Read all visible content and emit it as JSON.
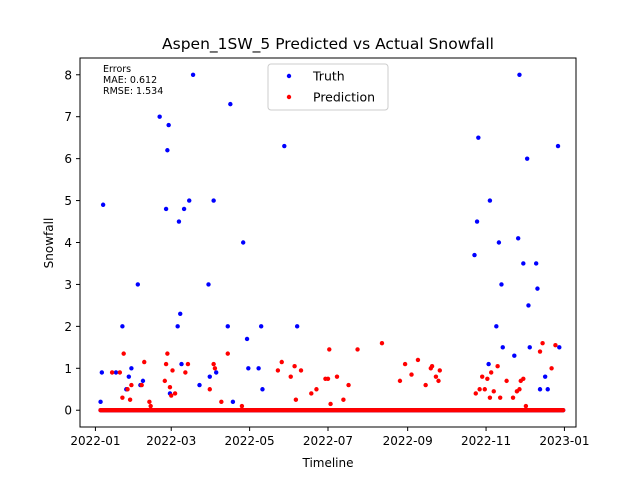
{
  "chart_data": {
    "type": "scatter",
    "title": "Aspen_1SW_5 Predicted vs Actual Snowfall",
    "xlabel": "Timeline",
    "ylabel": "Snowfall",
    "xlim": [
      "2021-12-20",
      "2023-01-10"
    ],
    "ylim": [
      -0.4,
      8.4
    ],
    "xticks": [
      "2022-01-01",
      "2022-03-01",
      "2022-05-01",
      "2022-07-01",
      "2022-09-01",
      "2022-11-01",
      "2023-01-01"
    ],
    "xtick_labels": [
      "2022-01",
      "2022-03",
      "2022-05",
      "2022-07",
      "2022-09",
      "2022-11",
      "2023-01"
    ],
    "yticks": [
      0,
      1,
      2,
      3,
      4,
      5,
      6,
      7,
      8
    ],
    "grid": false,
    "legend_position": "top-center",
    "errors": {
      "heading": "Errors",
      "mae": "MAE: 0.612",
      "rmse": "RMSE: 1.534"
    },
    "zero_runs": [
      {
        "start": "2022-01-05",
        "end": "2022-04-30"
      },
      {
        "start": "2022-05-01",
        "end": "2022-09-30"
      },
      {
        "start": "2022-10-01",
        "end": "2022-12-31"
      }
    ],
    "series": [
      {
        "name": "Truth",
        "color": "#0000ff",
        "points": [
          [
            "2022-01-05",
            0.2
          ],
          [
            "2022-01-06",
            0.9
          ],
          [
            "2022-01-07",
            4.9
          ],
          [
            "2022-01-17",
            0.9
          ],
          [
            "2022-01-22",
            2.0
          ],
          [
            "2022-01-25",
            0.5
          ],
          [
            "2022-01-27",
            0.8
          ],
          [
            "2022-01-29",
            1.0
          ],
          [
            "2022-02-03",
            3.0
          ],
          [
            "2022-02-05",
            0.6
          ],
          [
            "2022-02-07",
            0.7
          ],
          [
            "2022-02-20",
            7.0
          ],
          [
            "2022-02-25",
            4.8
          ],
          [
            "2022-02-26",
            6.2
          ],
          [
            "2022-02-27",
            6.8
          ],
          [
            "2022-02-28",
            0.4
          ],
          [
            "2022-03-06",
            2.0
          ],
          [
            "2022-03-07",
            4.5
          ],
          [
            "2022-03-08",
            2.3
          ],
          [
            "2022-03-09",
            1.1
          ],
          [
            "2022-03-11",
            4.8
          ],
          [
            "2022-03-15",
            5.0
          ],
          [
            "2022-03-18",
            8.0
          ],
          [
            "2022-03-23",
            0.6
          ],
          [
            "2022-03-30",
            3.0
          ],
          [
            "2022-03-31",
            0.8
          ],
          [
            "2022-04-03",
            5.0
          ],
          [
            "2022-04-05",
            0.9
          ],
          [
            "2022-04-14",
            2.0
          ],
          [
            "2022-04-16",
            7.3
          ],
          [
            "2022-04-18",
            0.2
          ],
          [
            "2022-04-26",
            4.0
          ],
          [
            "2022-04-29",
            1.7
          ],
          [
            "2022-04-30",
            1.0
          ],
          [
            "2022-05-08",
            1.0
          ],
          [
            "2022-05-10",
            2.0
          ],
          [
            "2022-05-11",
            0.5
          ],
          [
            "2022-05-28",
            6.3
          ],
          [
            "2022-06-07",
            2.0
          ],
          [
            "2022-10-23",
            3.7
          ],
          [
            "2022-10-25",
            4.5
          ],
          [
            "2022-10-26",
            6.5
          ],
          [
            "2022-11-03",
            1.1
          ],
          [
            "2022-11-04",
            5.0
          ],
          [
            "2022-11-09",
            2.0
          ],
          [
            "2022-11-11",
            4.0
          ],
          [
            "2022-11-13",
            3.0
          ],
          [
            "2022-11-14",
            1.5
          ],
          [
            "2022-11-23",
            1.3
          ],
          [
            "2022-11-26",
            4.1
          ],
          [
            "2022-11-27",
            8.0
          ],
          [
            "2022-11-30",
            3.5
          ],
          [
            "2022-12-03",
            6.0
          ],
          [
            "2022-12-04",
            2.5
          ],
          [
            "2022-12-05",
            1.5
          ],
          [
            "2022-12-10",
            3.5
          ],
          [
            "2022-12-11",
            2.9
          ],
          [
            "2022-12-13",
            0.5
          ],
          [
            "2022-12-17",
            0.8
          ],
          [
            "2022-12-19",
            0.5
          ],
          [
            "2022-12-27",
            6.3
          ],
          [
            "2022-12-28",
            1.5
          ]
        ]
      },
      {
        "name": "Prediction",
        "color": "#ff0000",
        "points": [
          [
            "2022-01-14",
            0.9
          ],
          [
            "2022-01-20",
            0.9
          ],
          [
            "2022-01-22",
            0.3
          ],
          [
            "2022-01-23",
            1.35
          ],
          [
            "2022-01-26",
            0.5
          ],
          [
            "2022-01-28",
            0.25
          ],
          [
            "2022-01-29",
            0.6
          ],
          [
            "2022-02-06",
            0.6
          ],
          [
            "2022-02-08",
            1.15
          ],
          [
            "2022-02-12",
            0.2
          ],
          [
            "2022-02-13",
            0.1
          ],
          [
            "2022-02-24",
            0.7
          ],
          [
            "2022-02-25",
            1.1
          ],
          [
            "2022-02-26",
            1.35
          ],
          [
            "2022-02-28",
            0.55
          ],
          [
            "2022-03-01",
            0.35
          ],
          [
            "2022-03-02",
            0.95
          ],
          [
            "2022-03-04",
            0.4
          ],
          [
            "2022-03-12",
            0.9
          ],
          [
            "2022-03-14",
            1.1
          ],
          [
            "2022-03-31",
            0.5
          ],
          [
            "2022-04-03",
            1.1
          ],
          [
            "2022-04-04",
            1.0
          ],
          [
            "2022-04-09",
            0.2
          ],
          [
            "2022-04-14",
            1.35
          ],
          [
            "2022-04-25",
            0.1
          ],
          [
            "2022-05-23",
            0.95
          ],
          [
            "2022-05-26",
            1.15
          ],
          [
            "2022-06-02",
            0.8
          ],
          [
            "2022-06-05",
            1.05
          ],
          [
            "2022-06-06",
            0.25
          ],
          [
            "2022-06-10",
            0.95
          ],
          [
            "2022-06-18",
            0.4
          ],
          [
            "2022-06-22",
            0.5
          ],
          [
            "2022-06-29",
            0.75
          ],
          [
            "2022-07-01",
            0.75
          ],
          [
            "2022-07-02",
            1.45
          ],
          [
            "2022-07-03",
            0.15
          ],
          [
            "2022-07-08",
            0.8
          ],
          [
            "2022-07-13",
            0.25
          ],
          [
            "2022-07-17",
            0.6
          ],
          [
            "2022-07-24",
            1.45
          ],
          [
            "2022-08-12",
            1.6
          ],
          [
            "2022-08-26",
            0.7
          ],
          [
            "2022-08-30",
            1.1
          ],
          [
            "2022-09-04",
            0.85
          ],
          [
            "2022-09-09",
            1.2
          ],
          [
            "2022-09-15",
            0.6
          ],
          [
            "2022-09-19",
            1.0
          ],
          [
            "2022-09-20",
            1.05
          ],
          [
            "2022-09-23",
            0.8
          ],
          [
            "2022-09-25",
            0.7
          ],
          [
            "2022-09-26",
            0.95
          ],
          [
            "2022-10-24",
            0.4
          ],
          [
            "2022-10-27",
            0.5
          ],
          [
            "2022-10-29",
            0.8
          ],
          [
            "2022-10-31",
            0.5
          ],
          [
            "2022-11-02",
            0.75
          ],
          [
            "2022-11-04",
            0.3
          ],
          [
            "2022-11-05",
            0.9
          ],
          [
            "2022-11-07",
            0.45
          ],
          [
            "2022-11-10",
            1.05
          ],
          [
            "2022-11-12",
            0.3
          ],
          [
            "2022-11-17",
            0.7
          ],
          [
            "2022-11-22",
            0.3
          ],
          [
            "2022-11-25",
            0.45
          ],
          [
            "2022-11-27",
            0.5
          ],
          [
            "2022-11-28",
            0.7
          ],
          [
            "2022-11-30",
            0.75
          ],
          [
            "2022-12-02",
            0.1
          ],
          [
            "2022-12-13",
            1.4
          ],
          [
            "2022-12-15",
            1.6
          ],
          [
            "2022-12-22",
            1.0
          ],
          [
            "2022-12-25",
            1.55
          ]
        ]
      }
    ]
  }
}
